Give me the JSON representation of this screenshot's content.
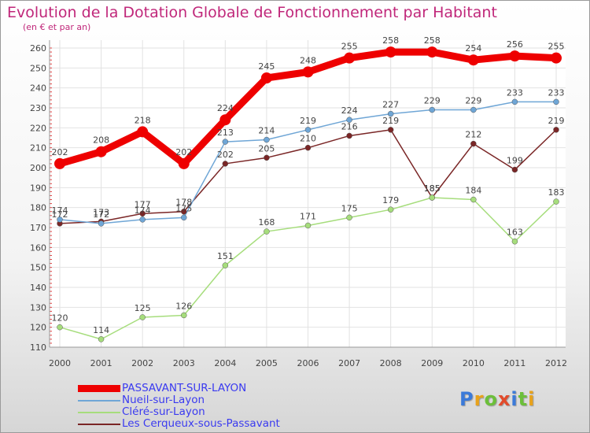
{
  "chart_data": {
    "type": "line",
    "title": "Evolution de la Dotation Globale de Fonctionnement par Habitant",
    "subtitle": "(en € et par an)",
    "x": [
      "2000",
      "2001",
      "2002",
      "2003",
      "2004",
      "2005",
      "2006",
      "2007",
      "2008",
      "2009",
      "2010",
      "2011",
      "2012"
    ],
    "ylim": [
      110,
      260
    ],
    "yticks": [
      110,
      120,
      130,
      140,
      150,
      160,
      170,
      180,
      190,
      200,
      210,
      220,
      230,
      240,
      250,
      260
    ],
    "series": [
      {
        "name": "PASSAVANT-SUR-LAYON",
        "color": "#ee0000",
        "values": [
          202,
          208,
          218,
          202,
          224,
          245,
          248,
          255,
          258,
          258,
          254,
          256,
          255
        ]
      },
      {
        "name": "Nueil-sur-Layon",
        "color": "#6fa6d6",
        "values": [
          174,
          172,
          174,
          175,
          213,
          214,
          219,
          224,
          227,
          229,
          229,
          233,
          233
        ]
      },
      {
        "name": "Cléré-sur-Layon",
        "color": "#a6dd7c",
        "values": [
          120,
          114,
          125,
          126,
          151,
          168,
          171,
          175,
          179,
          185,
          184,
          163,
          183
        ]
      },
      {
        "name": "Les Cerqueux-sous-Passavant",
        "color": "#7a2626",
        "values": [
          172,
          173,
          177,
          178,
          202,
          205,
          210,
          216,
          219,
          185,
          212,
          199,
          219
        ]
      }
    ]
  },
  "logo": {
    "letters": [
      "P",
      "r",
      "o",
      "x",
      "i",
      "t",
      "i"
    ],
    "colors": [
      "#3b7ad9",
      "#e8a21b",
      "#6cbf3a",
      "#e24b2b",
      "#3b7ad9",
      "#6cbf3a",
      "#e8a21b"
    ]
  }
}
